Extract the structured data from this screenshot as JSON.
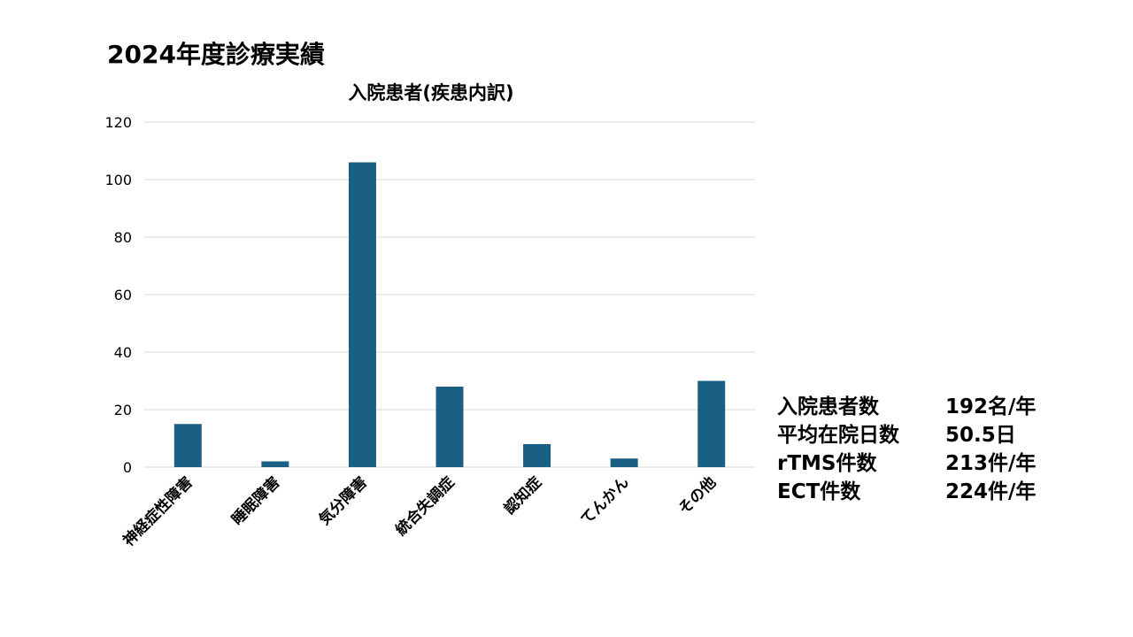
{
  "slide": {
    "title": "2024年度診療実績"
  },
  "chart_data": {
    "type": "bar",
    "title": "入院患者(疾患内訳)",
    "categories": [
      "神経症性障害",
      "睡眠障害",
      "気分障害",
      "統合失調症",
      "認知症",
      "てんかん",
      "その他"
    ],
    "values": [
      15,
      2,
      106,
      28,
      8,
      3,
      30
    ],
    "ylim": [
      0,
      120
    ],
    "yticks": [
      0,
      20,
      40,
      60,
      80,
      100,
      120
    ],
    "xlabel": "",
    "ylabel": "",
    "grid": true,
    "legend": "none",
    "bar_color": "#1a5f84",
    "grid_color": "#d9d9d9"
  },
  "stats": [
    {
      "label": "入院患者数",
      "value": "192名/年"
    },
    {
      "label": "平均在院日数",
      "value": "50.5日"
    },
    {
      "label": "rTMS件数",
      "value": "213件/年"
    },
    {
      "label": "ECT件数",
      "value": "224件/年"
    }
  ]
}
